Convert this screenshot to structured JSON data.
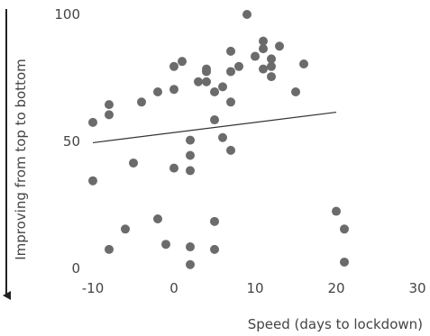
{
  "chart_data": {
    "type": "scatter",
    "title": "",
    "xlabel": "Speed (days to lockdown)",
    "ylabel": "Improving from top to bottom",
    "xlim": [
      -10,
      30
    ],
    "ylim": [
      0,
      100
    ],
    "xticks": [
      -10,
      0,
      10,
      20,
      30
    ],
    "yticks": [
      0,
      50,
      100
    ],
    "grid": false,
    "legend": "none",
    "point_color": "#6b6b6b",
    "trendline": {
      "x": [
        -10,
        20
      ],
      "y": [
        49.5,
        61.5
      ],
      "color": "#333333"
    },
    "points": [
      {
        "x": -10,
        "y": 57.5
      },
      {
        "x": -10,
        "y": 34.5
      },
      {
        "x": -8,
        "y": 64.5
      },
      {
        "x": -8,
        "y": 60.5
      },
      {
        "x": -8,
        "y": 7.5
      },
      {
        "x": -6,
        "y": 15.5
      },
      {
        "x": -5,
        "y": 41.5
      },
      {
        "x": -4,
        "y": 65.5
      },
      {
        "x": -2,
        "y": 69.5
      },
      {
        "x": -2,
        "y": 19.5
      },
      {
        "x": -1,
        "y": 9.5
      },
      {
        "x": 0,
        "y": 79.5
      },
      {
        "x": 0,
        "y": 70.5
      },
      {
        "x": 0,
        "y": 39.5
      },
      {
        "x": 1,
        "y": 81.5
      },
      {
        "x": 2,
        "y": 50.5
      },
      {
        "x": 2,
        "y": 44.5
      },
      {
        "x": 2,
        "y": 38.5
      },
      {
        "x": 2,
        "y": 8.5
      },
      {
        "x": 2,
        "y": 1.5
      },
      {
        "x": 3,
        "y": 73.5
      },
      {
        "x": 4,
        "y": 78.5
      },
      {
        "x": 4,
        "y": 77.5
      },
      {
        "x": 4,
        "y": 73.5
      },
      {
        "x": 5,
        "y": 69.5
      },
      {
        "x": 5,
        "y": 58.5
      },
      {
        "x": 5,
        "y": 18.5
      },
      {
        "x": 5,
        "y": 7.5
      },
      {
        "x": 6,
        "y": 71.5
      },
      {
        "x": 6,
        "y": 51.5
      },
      {
        "x": 7,
        "y": 85.5
      },
      {
        "x": 7,
        "y": 77.5
      },
      {
        "x": 7,
        "y": 65.5
      },
      {
        "x": 7,
        "y": 46.5
      },
      {
        "x": 8,
        "y": 79.5
      },
      {
        "x": 9,
        "y": 100.0
      },
      {
        "x": 10,
        "y": 83.5
      },
      {
        "x": 11,
        "y": 89.5
      },
      {
        "x": 11,
        "y": 86.5
      },
      {
        "x": 11,
        "y": 78.5
      },
      {
        "x": 12,
        "y": 82.5
      },
      {
        "x": 12,
        "y": 79.5
      },
      {
        "x": 12,
        "y": 75.5
      },
      {
        "x": 13,
        "y": 87.5
      },
      {
        "x": 15,
        "y": 69.5
      },
      {
        "x": 16,
        "y": 80.5
      },
      {
        "x": 20,
        "y": 22.5
      },
      {
        "x": 21,
        "y": 15.5
      },
      {
        "x": 21,
        "y": 2.5
      }
    ]
  }
}
